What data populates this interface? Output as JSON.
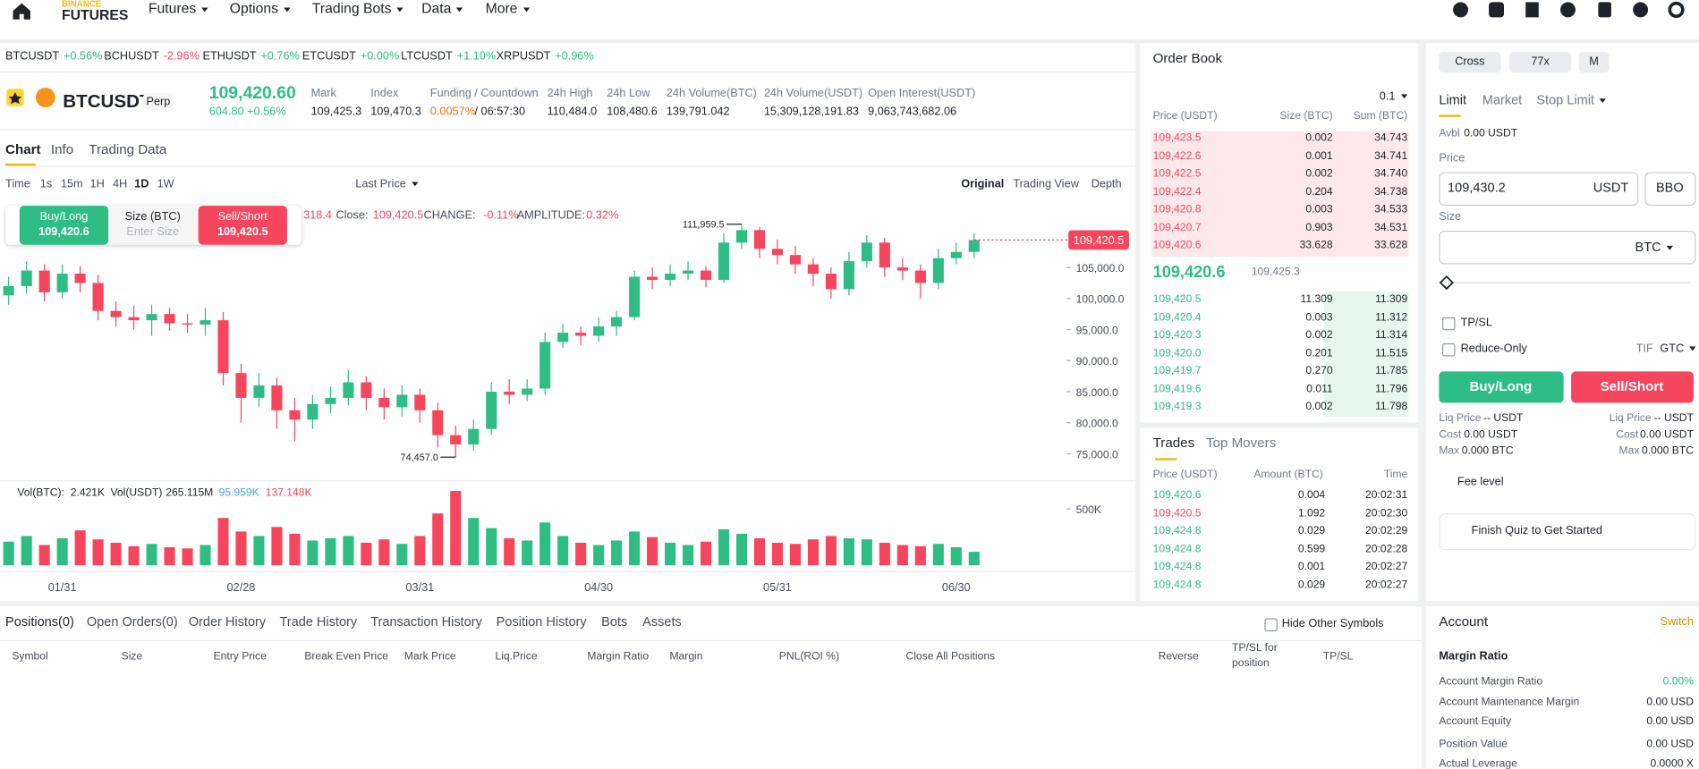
{
  "nav": {
    "brand_top": "BINANCE",
    "brand": "FUTURES",
    "menu": [
      "Futures",
      "Options",
      "Trading Bots",
      "Data",
      "More"
    ]
  },
  "tickers": [
    [
      "BTCUSDT",
      "+0.56%"
    ],
    [
      "BCHUSDT",
      "-2.96%"
    ],
    [
      "ETHUSDT",
      "+0.76%"
    ],
    [
      "ETCUSDT",
      "+0.00%"
    ],
    [
      "LTCUSDT",
      "+1.10%"
    ],
    [
      "XRPUSDT",
      "+0.96%"
    ]
  ],
  "header": {
    "symbol": "BTCUSDT",
    "tag": "Perp",
    "price": "109,420.60",
    "change": "604.80 +0.56%",
    "stats": [
      {
        "label": "Mark",
        "value": "109,425.3"
      },
      {
        "label": "Index",
        "value": "109,470.3"
      },
      {
        "label": "Funding / Countdown",
        "value": "0.0057%",
        "value2": "/ 06:57:30"
      },
      {
        "label": "24h High",
        "value": "110,484.0"
      },
      {
        "label": "24h Low",
        "value": "108,480.6"
      },
      {
        "label": "24h Volume(BTC)",
        "value": "139,791.042"
      },
      {
        "label": "24h Volume(USDT)",
        "value": "15,309,128,191.83"
      },
      {
        "label": "Open Interest(USDT)",
        "value": "9,063,743,682.06"
      }
    ]
  },
  "chart_tabs": [
    "Chart",
    "Info",
    "Trading Data"
  ],
  "intervals": [
    "Time",
    "1s",
    "15m",
    "1H",
    "4H",
    "1D",
    "1W"
  ],
  "price_source": "Last Price",
  "views": [
    "Original",
    "Trading View",
    "Depth"
  ],
  "quick_trade": {
    "buy_label": "Buy/Long",
    "buy_price": "109,420.6",
    "size_label": "Size (BTC)",
    "size_placeholder": "Enter Size",
    "sell_label": "Sell/Short",
    "sell_price": "109,420.5"
  },
  "ohlc": [
    "318.4",
    "Close:",
    "109,420.5",
    "CHANGE:",
    "-0.11%",
    "AMPLITUDE:",
    "0.32%"
  ],
  "volume_legend": [
    "Vol(BTC):",
    "2.421K",
    "Vol(USDT)",
    "265.115M",
    "95.959K",
    "137.148K"
  ],
  "chart_data": {
    "type": "candlestick",
    "up_color": "#2ebd85",
    "down_color": "#f6465d",
    "categories": [
      null,
      null,
      null,
      "01/31",
      null,
      null,
      null,
      null,
      null,
      null,
      null,
      null,
      null,
      "02/28",
      null,
      null,
      null,
      null,
      null,
      null,
      null,
      null,
      null,
      "03/31",
      null,
      null,
      null,
      null,
      null,
      null,
      null,
      null,
      null,
      "04/30",
      null,
      null,
      null,
      null,
      null,
      null,
      null,
      null,
      null,
      "05/31",
      null,
      null,
      null,
      null,
      null,
      null,
      null,
      null,
      null,
      "06/30",
      null
    ],
    "open": [
      100500,
      102000,
      104500,
      101000,
      104000,
      102500,
      98000,
      97000,
      96500,
      97500,
      96000,
      95800,
      96500,
      88000,
      84000,
      86000,
      82000,
      80500,
      83000,
      84000,
      86500,
      84000,
      82500,
      84500,
      82000,
      78000,
      76500,
      79000,
      85000,
      84500,
      85500,
      93000,
      94500,
      94000,
      95500,
      97000,
      103500,
      103000,
      104000,
      104500,
      103000,
      109000,
      111000,
      108000,
      107000,
      105500,
      104000,
      101500,
      106000,
      109000,
      105000,
      104500,
      102500,
      106500,
      107500
    ],
    "high": [
      103500,
      106000,
      105500,
      105500,
      105200,
      103800,
      99500,
      98800,
      99000,
      98500,
      97500,
      98500,
      97800,
      89500,
      88000,
      87200,
      84000,
      84500,
      85800,
      88500,
      87500,
      85500,
      86000,
      85500,
      83200,
      79500,
      80500,
      86500,
      87000,
      87000,
      94500,
      96000,
      95500,
      97000,
      98000,
      104500,
      105000,
      105500,
      106000,
      105200,
      110500,
      111959.5,
      111500,
      109500,
      108500,
      106500,
      105000,
      107500,
      110200,
      109800,
      106500,
      105500,
      108000,
      109000,
      110484
    ],
    "low": [
      99000,
      100800,
      99500,
      100000,
      101000,
      96500,
      95500,
      95000,
      94000,
      94800,
      94500,
      94000,
      86000,
      80000,
      82500,
      79000,
      77000,
      79000,
      81500,
      82800,
      82000,
      80500,
      81000,
      80000,
      76000,
      74457,
      75500,
      78000,
      83000,
      83500,
      84500,
      92000,
      92500,
      93000,
      94000,
      96500,
      101500,
      102000,
      103000,
      101800,
      102500,
      108000,
      106500,
      105500,
      104000,
      102000,
      100000,
      100500,
      105000,
      103500,
      103000,
      100000,
      101500,
      105500,
      106500
    ],
    "close": [
      102000,
      104500,
      101000,
      104000,
      102500,
      98000,
      97000,
      96500,
      97500,
      96000,
      95800,
      96500,
      88000,
      84000,
      86000,
      82000,
      80500,
      83000,
      84000,
      86500,
      84000,
      82500,
      84500,
      82000,
      78000,
      76500,
      79000,
      85000,
      84500,
      85500,
      93000,
      94500,
      94000,
      95500,
      97000,
      103500,
      103000,
      104000,
      104500,
      103000,
      109000,
      111000,
      108000,
      107000,
      105500,
      104000,
      101500,
      106000,
      109000,
      105000,
      104500,
      102500,
      106500,
      107500,
      109420.5
    ],
    "volume": [
      210000,
      260000,
      180000,
      240000,
      310000,
      230000,
      200000,
      170000,
      190000,
      160000,
      150000,
      180000,
      420000,
      300000,
      260000,
      340000,
      280000,
      220000,
      240000,
      260000,
      200000,
      230000,
      190000,
      260000,
      460000,
      660000,
      420000,
      330000,
      240000,
      220000,
      380000,
      260000,
      200000,
      180000,
      220000,
      300000,
      250000,
      200000,
      180000,
      210000,
      320000,
      280000,
      240000,
      200000,
      190000,
      230000,
      260000,
      240000,
      230000,
      200000,
      180000,
      170000,
      190000,
      160000,
      120000
    ],
    "ylim": [
      71340,
      115280
    ],
    "yticks": [
      {
        "value": 75000,
        "label": "75,000.0"
      },
      {
        "value": 80000,
        "label": "80,000.0"
      },
      {
        "value": 85000,
        "label": "85,000.0"
      },
      {
        "value": 90000,
        "label": "90,000.0"
      },
      {
        "value": 95000,
        "label": "95,000.0"
      },
      {
        "value": 100000,
        "label": "100,000.0"
      },
      {
        "value": 105000,
        "label": "105,000.0"
      }
    ],
    "volume_ylim": [
      0,
      692000
    ],
    "volume_yticks": [
      {
        "value": 500000,
        "label": "500K"
      }
    ],
    "last_price_label": "109,420.5",
    "high_label": "111,959.5",
    "low_label": "74,457.0",
    "grid": false
  },
  "order_book": {
    "title": "Order Book",
    "precision": "0.1",
    "headers": [
      "Price (USDT)",
      "Size (BTC)",
      "Sum (BTC)"
    ],
    "asks": [
      [
        "109,423.5",
        "0.002",
        "34.743"
      ],
      [
        "109,422.6",
        "0.001",
        "34.741"
      ],
      [
        "109,422.5",
        "0.002",
        "34.740"
      ],
      [
        "109,422.4",
        "0.204",
        "34.738"
      ],
      [
        "109,420.8",
        "0.003",
        "34.533"
      ],
      [
        "109,420.7",
        "0.903",
        "34.531"
      ],
      [
        "109,420.6",
        "33.628",
        "33.628"
      ]
    ],
    "mid": "109,420.6",
    "mark": "109,425.3",
    "bids": [
      [
        "109,420.5",
        "11.309",
        "11.309"
      ],
      [
        "109,420.4",
        "0.003",
        "11.312"
      ],
      [
        "109,420.3",
        "0.002",
        "11.314"
      ],
      [
        "109,420.0",
        "0.201",
        "11.515"
      ],
      [
        "109,419.7",
        "0.270",
        "11.785"
      ],
      [
        "109,419.6",
        "0.011",
        "11.796"
      ],
      [
        "109,419.3",
        "0.002",
        "11.798"
      ]
    ]
  },
  "trades": {
    "tabs": [
      "Trades",
      "Top Movers"
    ],
    "headers": [
      "Price (USDT)",
      "Amount (BTC)",
      "Time"
    ],
    "rows": [
      {
        "cells": [
          "109,420.6",
          "0.004",
          "20:02:31"
        ],
        "color": "#2ebd85"
      },
      {
        "cells": [
          "109,420.5",
          "1.092",
          "20:02:30"
        ],
        "color": "#f6465d"
      },
      {
        "cells": [
          "109,424.8",
          "0.029",
          "20:02:29"
        ],
        "color": "#2ebd85"
      },
      {
        "cells": [
          "109,424.8",
          "0.599",
          "20:02:28"
        ],
        "color": "#2ebd85"
      },
      {
        "cells": [
          "109,424.8",
          "0.001",
          "20:02:27"
        ],
        "color": "#2ebd85"
      },
      {
        "cells": [
          "109,424.8",
          "0.029",
          "20:02:27"
        ],
        "color": "#2ebd85"
      }
    ]
  },
  "order_form": {
    "margin": [
      "Cross",
      "77x",
      "M"
    ],
    "types": [
      "Limit",
      "Market",
      "Stop Limit"
    ],
    "avbl_label": "Avbl",
    "avbl": "0.00 USDT",
    "price_label": "Price",
    "price": "109,430.2",
    "price_unit": "USDT",
    "bbo": "BBO",
    "size_label": "Size",
    "size_unit": "BTC",
    "tpsl": "TP/SL",
    "reduce_only": "Reduce-Only",
    "tif_label": "TIF",
    "tif": "GTC",
    "buy": "Buy/Long",
    "sell": "Sell/Short",
    "info": [
      [
        "Liq Price",
        "-- USDT"
      ],
      [
        "Cost",
        "0.00 USDT"
      ],
      [
        "Max",
        "0.000 BTC"
      ]
    ],
    "fee": "Fee level",
    "quiz": "Finish Quiz to Get Started"
  },
  "account": {
    "title": "Account",
    "switch": "Switch",
    "subtitle": "Margin Ratio",
    "rows": [
      [
        "Account Margin Ratio",
        "0.00%"
      ],
      [
        "Account Maintenance Margin",
        "0.00 USD"
      ],
      [
        "Account Equity",
        "0.00 USD"
      ],
      [
        "Position Value",
        "0.00 USD"
      ],
      [
        "Actual Leverage",
        "0.0000 X"
      ]
    ]
  },
  "positions": {
    "tabs": [
      "Positions(0)",
      "Open Orders(0)",
      "Order History",
      "Trade History",
      "Transaction History",
      "Position History",
      "Bots",
      "Assets"
    ],
    "hide_other": "Hide Other Symbols",
    "columns": [
      "Symbol",
      "Size",
      "Entry Price",
      "Break Even Price",
      "Mark Price",
      "Liq.Price",
      "Margin Ratio",
      "Margin",
      "PNL(ROI %)",
      "Close All Positions",
      "Reverse",
      "TP/SL for position",
      "TP/SL"
    ]
  }
}
